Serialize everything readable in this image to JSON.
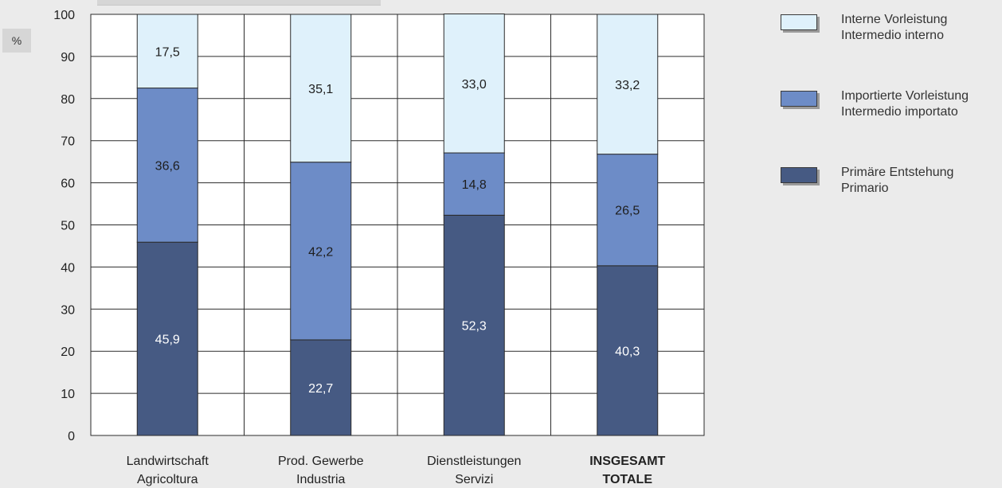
{
  "unit_label": "%",
  "colors": {
    "background": "#ebebeb",
    "plot_background": "#ffffff",
    "grid": "#2b2b2b",
    "interne": "#dff1fb",
    "importierte": "#6d8cc7",
    "primaere": "#465a83"
  },
  "legend": [
    {
      "de": "Interne Vorleistung",
      "it": "Intermedio interno",
      "color": "#dff1fb"
    },
    {
      "de": "Importierte Vorleistung",
      "it": "Intermedio importato",
      "color": "#6d8cc7"
    },
    {
      "de": "Primäre Entstehung",
      "it": "Primario",
      "color": "#465a83"
    }
  ],
  "chart_data": {
    "type": "bar",
    "stacked": true,
    "categories": [
      {
        "line1": "Landwirtschaft",
        "line2": "Agricoltura",
        "bold": false
      },
      {
        "line1": "Prod. Gewerbe",
        "line2": "Industria",
        "bold": false
      },
      {
        "line1": "Dienstleistungen",
        "line2": "Servizi",
        "bold": false
      },
      {
        "line1": "INSGESAMT",
        "line2": "TOTALE",
        "bold": true
      }
    ],
    "series": [
      {
        "name": "Primäre Entstehung / Primario",
        "color": "#465a83",
        "label_color": "#ffffff",
        "values": [
          45.9,
          22.7,
          52.3,
          40.3
        ],
        "labels": [
          "45,9",
          "22,7",
          "52,3",
          "40,3"
        ]
      },
      {
        "name": "Importierte Vorleistung / Intermedio importato",
        "color": "#6d8cc7",
        "label_color": "#1e1e1e",
        "values": [
          36.6,
          42.2,
          14.8,
          26.5
        ],
        "labels": [
          "36,6",
          "42,2",
          "14,8",
          "26,5"
        ]
      },
      {
        "name": "Interne Vorleistung / Intermedio interno",
        "color": "#dff1fb",
        "label_color": "#1e1e1e",
        "values": [
          17.5,
          35.1,
          33.0,
          33.2
        ],
        "labels": [
          "17,5",
          "35,1",
          "33,0",
          "33,2"
        ]
      }
    ],
    "ylim": [
      0,
      100
    ],
    "yticks": [
      0,
      10,
      20,
      30,
      40,
      50,
      60,
      70,
      80,
      90,
      100
    ],
    "grid": true,
    "legend_position": "right"
  }
}
